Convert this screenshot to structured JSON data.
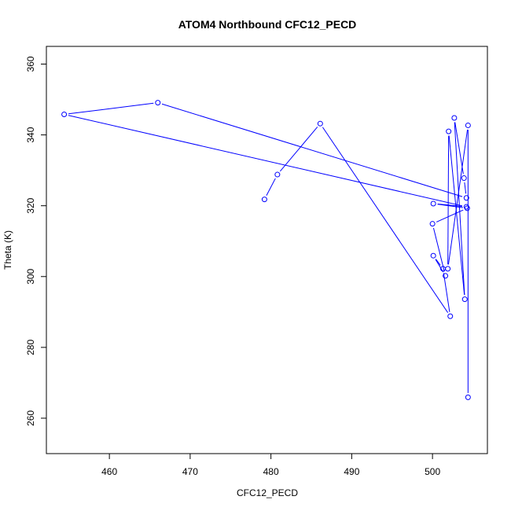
{
  "chart_data": {
    "type": "line",
    "title": "ATOM4 Northbound CFC12_PECD",
    "xlabel": "CFC12_PECD",
    "ylabel": "Theta (K)",
    "xlim": [
      452.2,
      506.8
    ],
    "ylim": [
      250,
      365
    ],
    "xticks": [
      460,
      470,
      480,
      490,
      500
    ],
    "yticks": [
      260,
      280,
      300,
      320,
      340,
      360
    ],
    "grid": false,
    "line_color": "#0000ff",
    "marker": "open-circle",
    "series": [
      {
        "x": [
          479.2,
          480.8,
          486.1,
          502.2,
          501.3,
          500.1,
          501.6,
          500.0,
          504.3,
          500.1,
          504.2,
          454.4,
          466.0,
          504.2,
          503.9,
          502.7,
          504.0,
          502.0,
          501.9,
          504.4,
          504.4
        ],
        "y": [
          321.8,
          328.8,
          343.2,
          288.8,
          302.2,
          305.9,
          300.2,
          314.9,
          319.3,
          320.6,
          319.7,
          345.8,
          349.1,
          322.2,
          327.8,
          344.8,
          293.6,
          341.0,
          302.2,
          342.7,
          265.9
        ]
      }
    ]
  }
}
